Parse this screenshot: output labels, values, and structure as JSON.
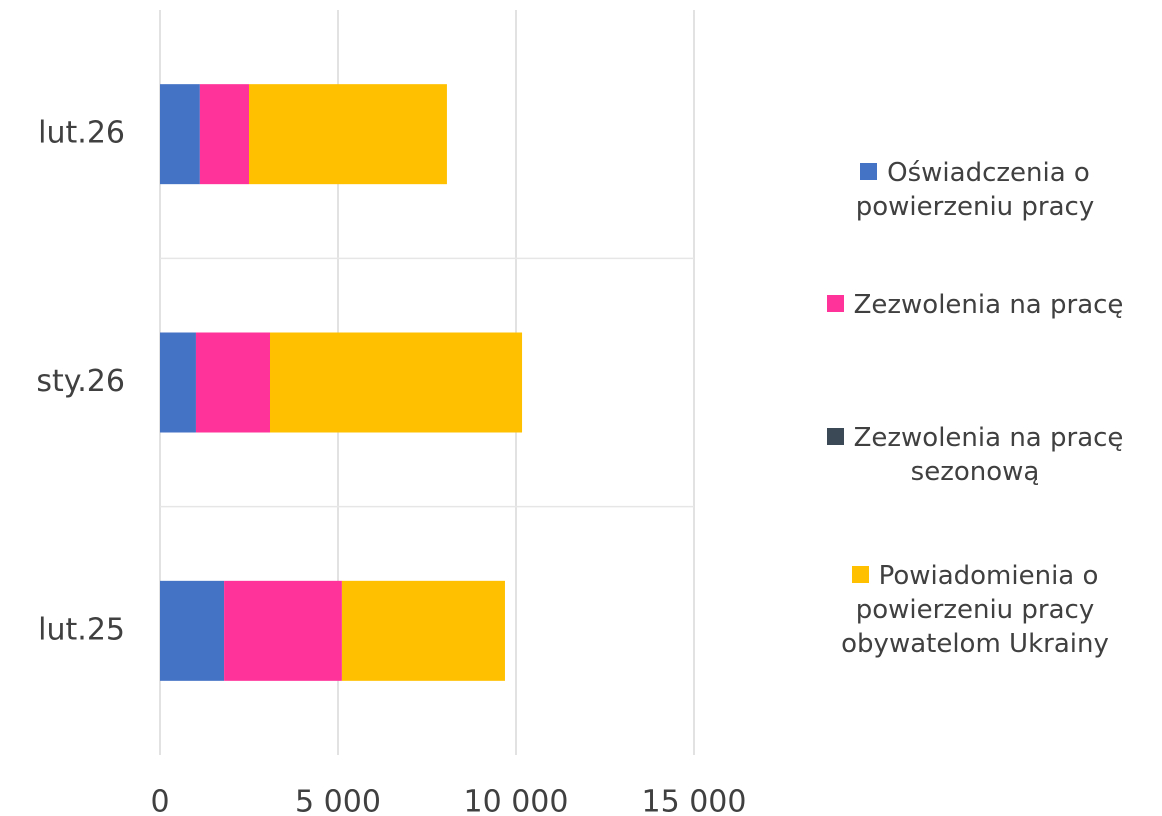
{
  "chart_data": {
    "type": "hbar_stacked",
    "categories": [
      "lut.26",
      "sty.26",
      "lut.25"
    ],
    "series": [
      {
        "name": "Oświadczenia o powierzeniu pracy",
        "color": "#4472c4",
        "values": [
          1120,
          1010,
          1800
        ]
      },
      {
        "name": "Zezwolenia na pracę",
        "color": "#ff3399",
        "values": [
          1380,
          2080,
          3310
        ]
      },
      {
        "name": "Zezwolenia na pracę sezonową",
        "color": "#3b4856",
        "values": [
          0,
          0,
          0
        ]
      },
      {
        "name": "Powiadomienia o powierzeniu pracy obywatelom Ukrainy",
        "color": "#ffc000",
        "values": [
          5560,
          7080,
          4580
        ]
      }
    ],
    "xlim": [
      0,
      15000
    ],
    "xticks": [
      0,
      {
        "value": 5000,
        "label": "5 000"
      },
      {
        "value": 10000,
        "label": "10 000"
      },
      {
        "value": 15000,
        "label": "15 000"
      }
    ],
    "grid": true,
    "legend": "right"
  }
}
